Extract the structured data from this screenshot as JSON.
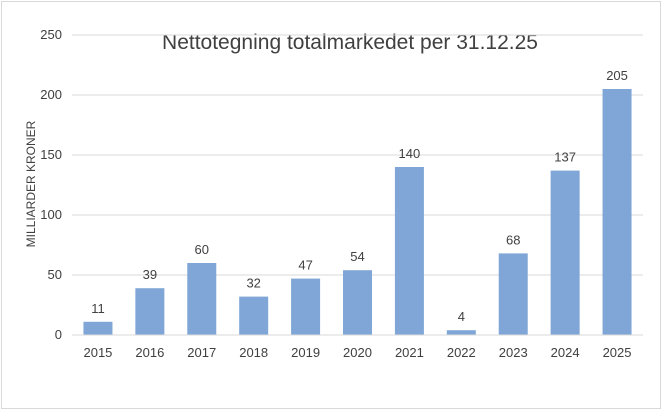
{
  "chart_data": {
    "type": "bar",
    "title": "Nettotegning totalmarkedet per 31.12.25",
    "ylabel": "MILLIARDER KRONER",
    "xlabel": "",
    "categories": [
      "2015",
      "2016",
      "2017",
      "2018",
      "2019",
      "2020",
      "2021",
      "2022",
      "2023",
      "2024",
      "2025"
    ],
    "values": [
      11,
      39,
      60,
      32,
      47,
      54,
      140,
      4,
      68,
      137,
      205
    ],
    "ylim": [
      0,
      250
    ],
    "yticks": [
      0,
      50,
      100,
      150,
      200,
      250
    ],
    "grid": true,
    "bar_color": "#7fa6d6",
    "gridline_color": "#d9d9d9"
  }
}
